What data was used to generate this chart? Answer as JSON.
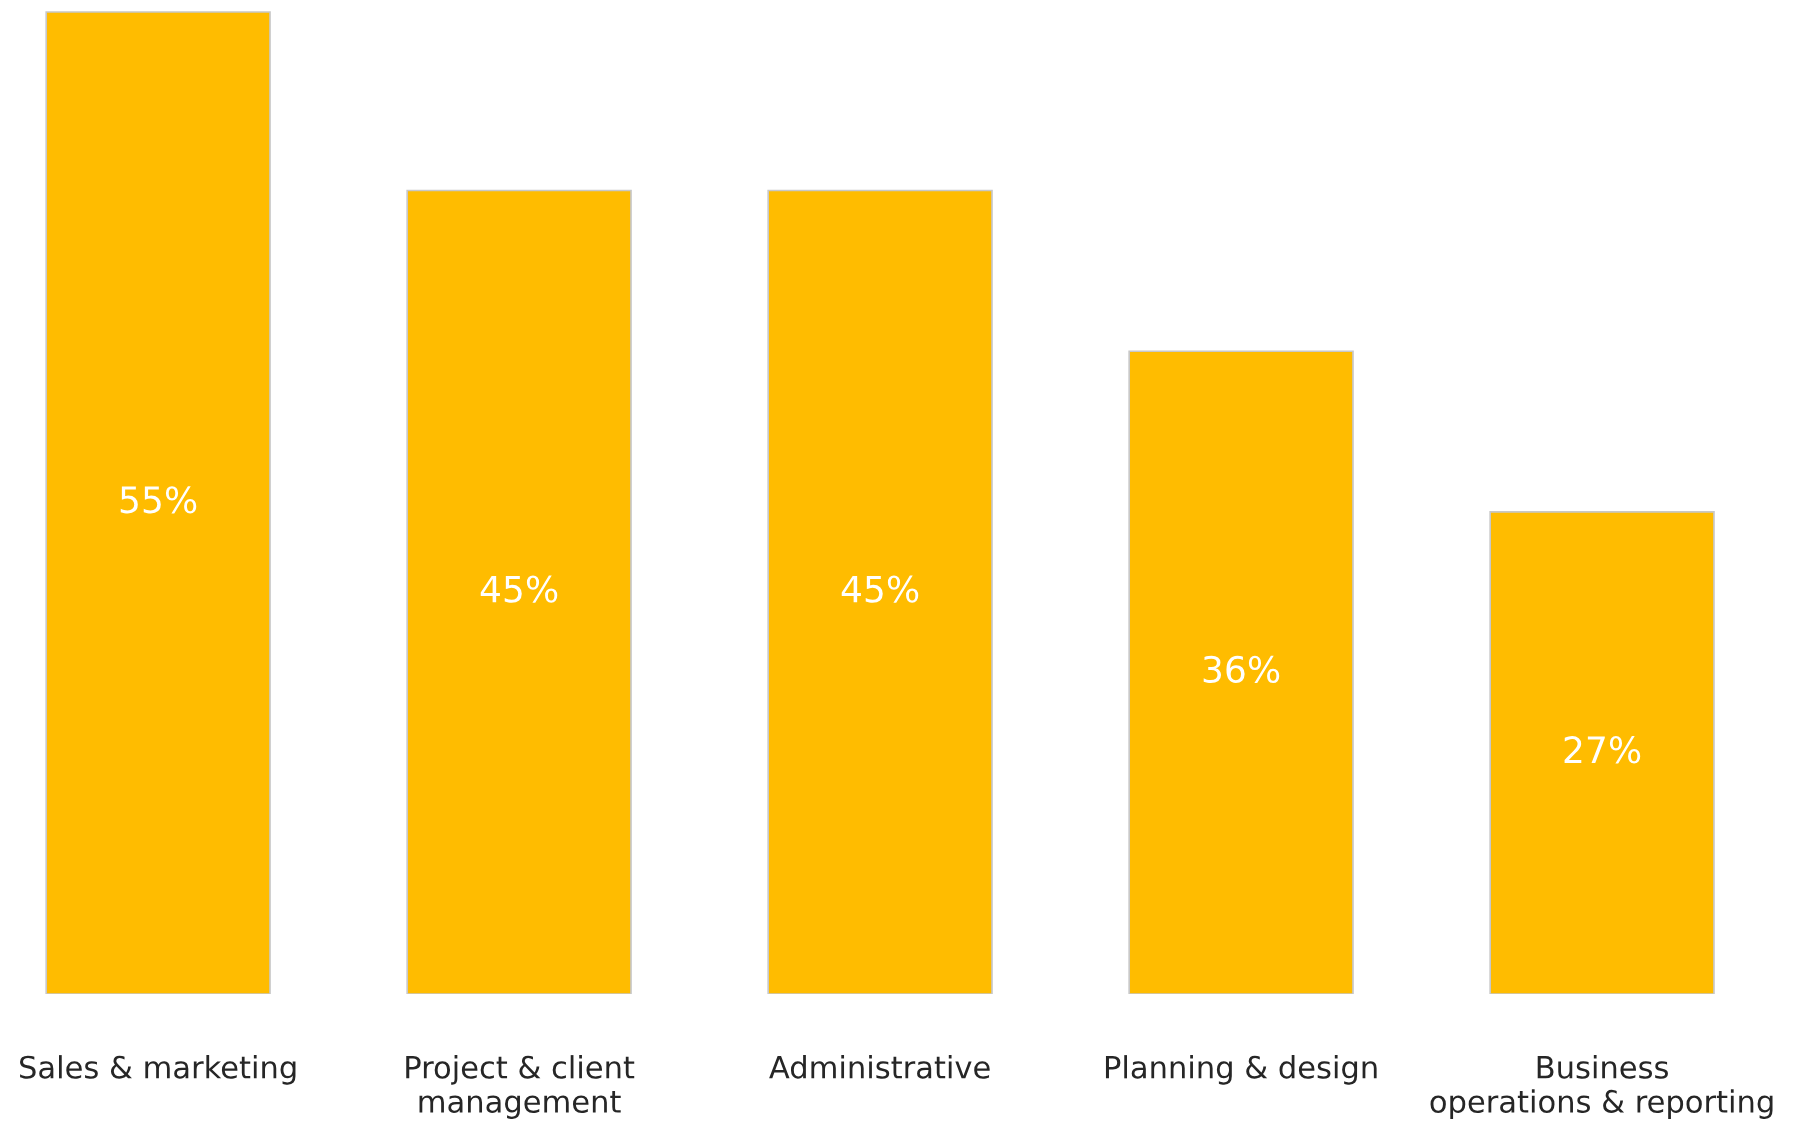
{
  "chart_data": {
    "type": "bar",
    "categories": [
      "Sales & marketing",
      "Project & client\nmanagement",
      "Administrative",
      "Planning & design",
      "Business\noperations & reporting"
    ],
    "values": [
      55,
      45,
      45,
      36,
      27
    ],
    "value_labels": [
      "55%",
      "45%",
      "45%",
      "36%",
      "27%"
    ],
    "color": "#ffbc00",
    "grid": false,
    "legend": false
  }
}
